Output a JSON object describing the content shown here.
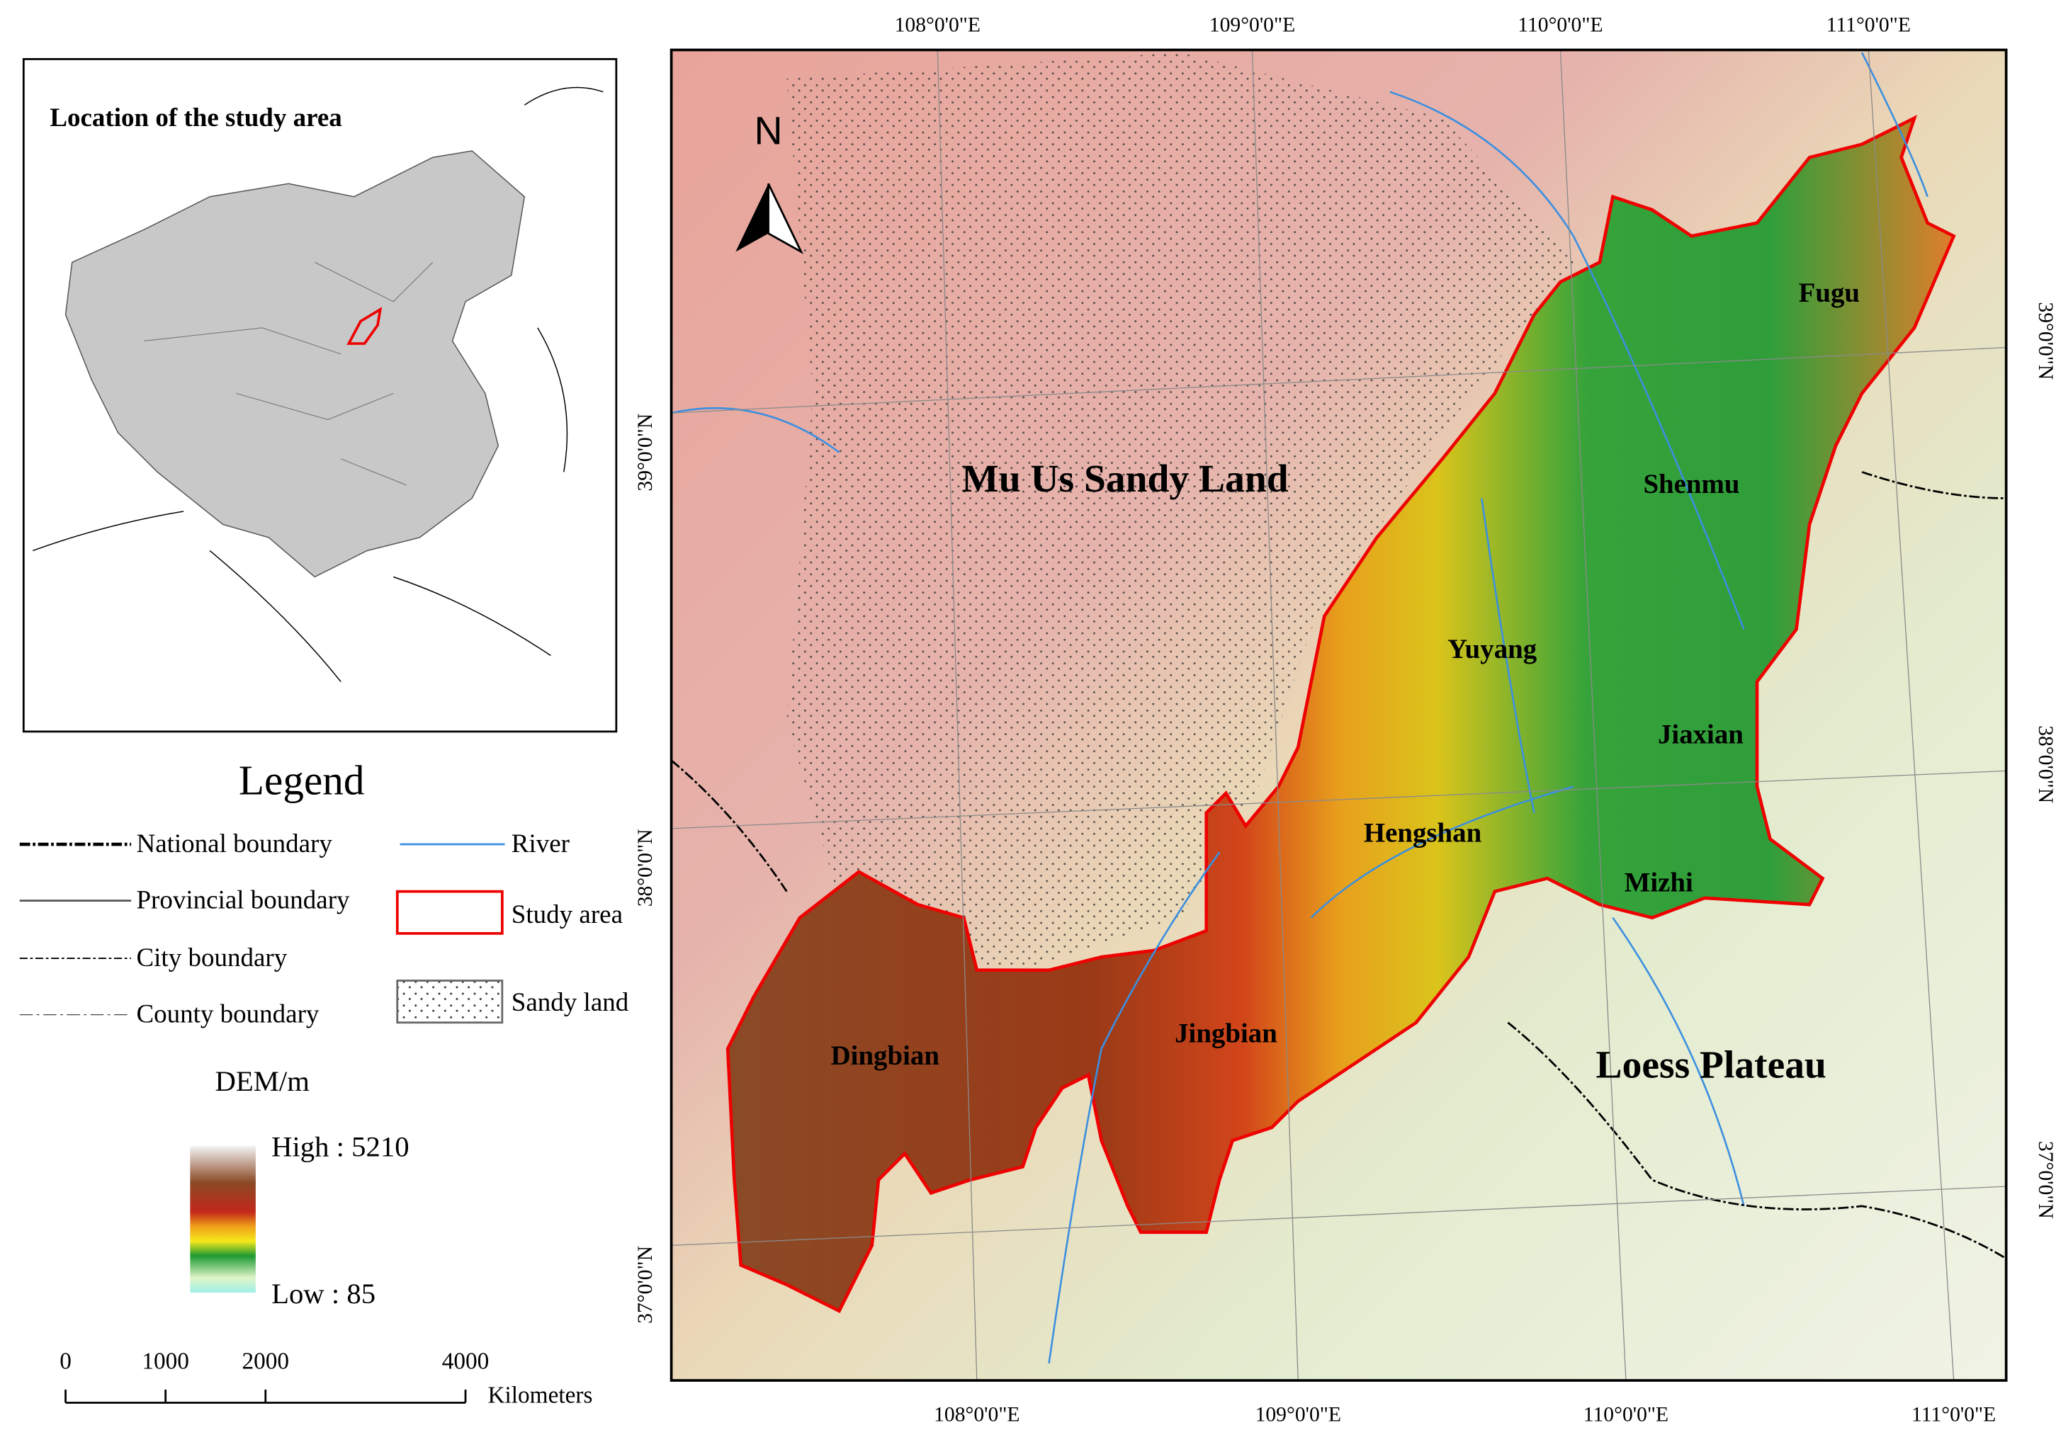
{
  "inset": {
    "title": "Location of the study area"
  },
  "legend": {
    "title": "Legend",
    "items": [
      "National boundary",
      "Provincial boundary",
      "City boundary",
      "County boundary",
      "River",
      "Study area",
      "Sandy land"
    ],
    "dem": {
      "title": "DEM/m",
      "high": "High : 5210",
      "low": "Low : 85"
    },
    "scale_bar": {
      "ticks": [
        0,
        1000,
        2000,
        4000
      ],
      "unit": "Kilometers"
    }
  },
  "map": {
    "north": "N",
    "top_labels": [
      "108°0'0\"E",
      "109°0'0\"E",
      "110°0'0\"E",
      "111°0'0\"E"
    ],
    "bottom_labels": [
      "108°0'0\"E",
      "109°0'0\"E",
      "110°0'0\"E",
      "111°0'0\"E"
    ],
    "left_labels": [
      "39°0'0\"N",
      "38°0'0\"N",
      "37°0'0\"N"
    ],
    "right_labels": [
      "39°0'0\"N",
      "38°0'0\"N",
      "37°0'0\"N"
    ],
    "places": [
      "Mu Us Sandy Land",
      "Shenmu",
      "Fugu",
      "Yuyang",
      "Jiaxian",
      "Hengshan",
      "Mizhi",
      "Jingbian",
      "Dingbian",
      "Loess Plateau"
    ]
  }
}
